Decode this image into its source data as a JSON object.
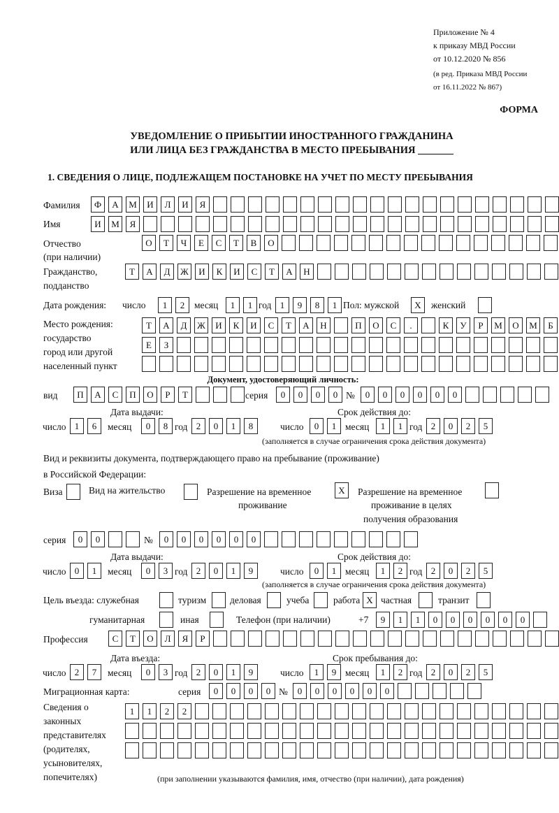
{
  "header": {
    "appendix": "Приложение № 4",
    "order": "к приказу МВД России",
    "order_date": "от 10.12.2020 № 856",
    "edition1": "(в ред. Приказа МВД России",
    "edition2": "от 16.11.2022 № 867)",
    "forma": "ФОРМА",
    "title1": "УВЕДОМЛЕНИЕ О ПРИБЫТИИ ИНОСТРАННОГО ГРАЖДАНИНА",
    "title2": "ИЛИ ЛИЦА БЕЗ ГРАЖДАНСТВА В МЕСТО ПРЕБЫВАНИЯ _______",
    "section1": "1. СВЕДЕНИЯ О ЛИЦЕ, ПОДЛЕЖАЩЕМ ПОСТАНОВКЕ НА УЧЕТ ПО МЕСТУ ПРЕБЫВАНИЯ"
  },
  "labels": {
    "surname": "Фамилия",
    "name": "Имя",
    "patronymic1": "Отчество",
    "patronymic2": "(при наличии)",
    "citizenship1": "Гражданство,",
    "citizenship2": "подданство",
    "birth_date": "Дата рождения:",
    "day": "число",
    "month": "месяц",
    "year": "год",
    "sex": "Пол: мужской",
    "female": "женский",
    "birth_place1": "Место рождения:",
    "birth_place2": "государство",
    "birth_place3": "город или другой",
    "birth_place4": "населенный пункт",
    "id_doc": "Документ, удостоверяющий личность:",
    "kind": "вид",
    "series": "серия",
    "number": "№",
    "issue_date": "Дата выдачи:",
    "valid_until": "Срок действия до:",
    "validity_note": "(заполняется в случае ограничения срока действия документа)",
    "right_doc1": "Вид и реквизиты документа, подтверждающего право на пребывание (проживание)",
    "right_doc2": "в Российской Федерации:",
    "visa": "Виза",
    "residence": "Вид на жительство",
    "temp_res1": "Разрешение на временное",
    "temp_res2": "проживание",
    "temp_edu1": "Разрешение на временное",
    "temp_edu2": "проживание в целях",
    "temp_edu3": "получения образования",
    "purpose": "Цель въезда: служебная",
    "tourism": "туризм",
    "business": "деловая",
    "study": "учеба",
    "work": "работа",
    "private": "частная",
    "transit": "транзит",
    "humanitarian": "гуманитарная",
    "other": "иная",
    "phone": "Телефон (при наличии)",
    "phone_prefix": "+7",
    "profession": "Профессия",
    "entry_date": "Дата въезда:",
    "stay_until": "Срок пребывания до:",
    "migration_card": "Миграционная карта:",
    "reps1": "Сведения о",
    "reps2": "законных",
    "reps3": "представителях",
    "reps4": "(родителях,",
    "reps5": "усыновителях,",
    "reps6": "попечителях)",
    "reps_note": "(при заполнении указываются фамилия, имя, отчество (при наличии), дата рождения)"
  },
  "fields": {
    "surname": [
      "Ф",
      "А",
      "М",
      "И",
      "Л",
      "И",
      "Я",
      "",
      "",
      "",
      "",
      "",
      "",
      "",
      "",
      "",
      "",
      "",
      "",
      "",
      "",
      "",
      "",
      "",
      "",
      "",
      ""
    ],
    "name": [
      "И",
      "М",
      "Я",
      "",
      "",
      "",
      "",
      "",
      "",
      "",
      "",
      "",
      "",
      "",
      "",
      "",
      "",
      "",
      "",
      "",
      "",
      "",
      "",
      "",
      "",
      "",
      ""
    ],
    "patronymic": [
      "О",
      "Т",
      "Ч",
      "Е",
      "С",
      "Т",
      "В",
      "О",
      "",
      "",
      "",
      "",
      "",
      "",
      "",
      "",
      "",
      "",
      "",
      "",
      "",
      "",
      "",
      "",
      ""
    ],
    "citizenship": [
      "Т",
      "А",
      "Д",
      "Ж",
      "И",
      "К",
      "И",
      "С",
      "Т",
      "А",
      "Н",
      "",
      "",
      "",
      "",
      "",
      "",
      "",
      "",
      "",
      "",
      "",
      "",
      "",
      ""
    ],
    "birth_day": [
      "1",
      "2"
    ],
    "birth_month": [
      "1",
      "1"
    ],
    "birth_year": [
      "1",
      "9",
      "8",
      "1"
    ],
    "sex_male": [
      "X"
    ],
    "sex_female": [
      ""
    ],
    "birth_place_1": [
      "Т",
      "А",
      "Д",
      "Ж",
      "И",
      "К",
      "И",
      "С",
      "Т",
      "А",
      "Н",
      "",
      "П",
      "О",
      "С",
      ".",
      "",
      "К",
      "У",
      "Р",
      "М",
      "О",
      "М",
      "Б"
    ],
    "birth_place_2": [
      "Е",
      "З",
      "",
      "",
      "",
      "",
      "",
      "",
      "",
      "",
      "",
      "",
      "",
      "",
      "",
      "",
      "",
      "",
      "",
      "",
      "",
      "",
      "",
      ""
    ],
    "birth_place_3": [
      "",
      "",
      "",
      "",
      "",
      "",
      "",
      "",
      "",
      "",
      "",
      "",
      "",
      "",
      "",
      "",
      "",
      "",
      "",
      "",
      "",
      "",
      "",
      ""
    ],
    "doc_kind": [
      "П",
      "А",
      "С",
      "П",
      "О",
      "Р",
      "Т",
      "",
      "",
      ""
    ],
    "doc_series": [
      "0",
      "0",
      "0",
      "0"
    ],
    "doc_number": [
      "0",
      "0",
      "0",
      "0",
      "0",
      "0",
      "",
      "",
      "",
      "",
      ""
    ],
    "doc_issue_day": [
      "1",
      "6"
    ],
    "doc_issue_month": [
      "0",
      "8"
    ],
    "doc_issue_year": [
      "2",
      "0",
      "1",
      "8"
    ],
    "doc_valid_day": [
      "0",
      "1"
    ],
    "doc_valid_month": [
      "1",
      "1"
    ],
    "doc_valid_year": [
      "2",
      "0",
      "2",
      "5"
    ],
    "visa": [
      ""
    ],
    "residence": [
      ""
    ],
    "temp_res": [
      "X"
    ],
    "temp_edu": [
      ""
    ],
    "right_series": [
      "0",
      "0",
      "",
      ""
    ],
    "right_number": [
      "0",
      "0",
      "0",
      "0",
      "0",
      "0",
      "",
      "",
      "",
      "",
      "",
      "",
      "",
      "",
      ""
    ],
    "right_issue_day": [
      "0",
      "1"
    ],
    "right_issue_month": [
      "0",
      "3"
    ],
    "right_issue_year": [
      "2",
      "0",
      "1",
      "9"
    ],
    "right_valid_day": [
      "0",
      "1"
    ],
    "right_valid_month": [
      "1",
      "2"
    ],
    "right_valid_year": [
      "2",
      "0",
      "2",
      "5"
    ],
    "p_service": [
      ""
    ],
    "p_tourism": [
      ""
    ],
    "p_business": [
      ""
    ],
    "p_study": [
      ""
    ],
    "p_work": [
      "X"
    ],
    "p_private": [
      ""
    ],
    "p_transit": [
      ""
    ],
    "p_humanitarian": [
      ""
    ],
    "p_other": [
      ""
    ],
    "phone": [
      "9",
      "1",
      "1",
      "0",
      "0",
      "0",
      "0",
      "0",
      "0",
      ""
    ],
    "profession": [
      "С",
      "Т",
      "О",
      "Л",
      "Я",
      "Р",
      "",
      "",
      "",
      "",
      "",
      "",
      "",
      "",
      "",
      "",
      "",
      "",
      "",
      "",
      "",
      "",
      "",
      "",
      "",
      ""
    ],
    "entry_day": [
      "2",
      "7"
    ],
    "entry_month": [
      "0",
      "3"
    ],
    "entry_year": [
      "2",
      "0",
      "1",
      "9"
    ],
    "stay_day": [
      "1",
      "9"
    ],
    "stay_month": [
      "1",
      "2"
    ],
    "stay_year": [
      "2",
      "0",
      "2",
      "5"
    ],
    "mc_series": [
      "0",
      "0",
      "0",
      "0"
    ],
    "mc_number": [
      "0",
      "0",
      "0",
      "0",
      "0",
      "0",
      "",
      "",
      "",
      "",
      ""
    ],
    "reps_1": [
      "1",
      "1",
      "2",
      "2",
      "",
      "",
      "",
      "",
      "",
      "",
      "",
      "",
      "",
      "",
      "",
      "",
      "",
      "",
      "",
      "",
      "",
      "",
      "",
      "",
      ""
    ],
    "reps_2": [
      "",
      "",
      "",
      "",
      "",
      "",
      "",
      "",
      "",
      "",
      "",
      "",
      "",
      "",
      "",
      "",
      "",
      "",
      "",
      "",
      "",
      "",
      "",
      "",
      ""
    ],
    "reps_3": [
      "",
      "",
      "",
      "",
      "",
      "",
      "",
      "",
      "",
      "",
      "",
      "",
      "",
      "",
      "",
      "",
      "",
      "",
      "",
      "",
      "",
      "",
      "",
      "",
      ""
    ]
  }
}
